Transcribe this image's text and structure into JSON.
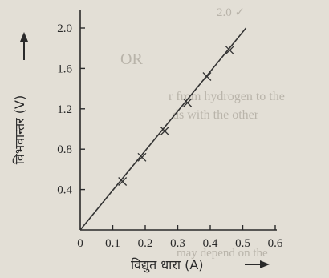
{
  "background_fragments": [
    {
      "text": "OR"
    },
    {
      "text": "r from hydrogen to the"
    },
    {
      "text": "ds with the other"
    },
    {
      "text": "may depend on the"
    },
    {
      "text": "2.0 ✓"
    }
  ],
  "chart_data": {
    "type": "line",
    "title": "",
    "xlabel": "विद्युत धारा (A)",
    "ylabel": "विभवान्तर (V)",
    "xlim": [
      0,
      0.6
    ],
    "ylim": [
      0,
      2.2
    ],
    "x_ticks": [
      "0",
      "0.1",
      "0.2",
      "0.3",
      "0.4",
      "0.5",
      "0.6"
    ],
    "x_tick_values": [
      0,
      0.1,
      0.2,
      0.3,
      0.4,
      0.5,
      0.6
    ],
    "y_ticks": [
      "0.4",
      "0.8",
      "1.2",
      "1.6",
      "2.0"
    ],
    "y_tick_values": [
      0.4,
      0.8,
      1.2,
      1.6,
      2.0
    ],
    "grid": false,
    "series": [
      {
        "points": [
          {
            "x": 0.13,
            "y": 0.48
          },
          {
            "x": 0.19,
            "y": 0.72
          },
          {
            "x": 0.26,
            "y": 0.98
          },
          {
            "x": 0.33,
            "y": 1.26
          },
          {
            "x": 0.39,
            "y": 1.52
          },
          {
            "x": 0.46,
            "y": 1.78
          }
        ],
        "line": {
          "x": [
            0,
            0.51
          ],
          "y": [
            0,
            2.0
          ]
        }
      }
    ],
    "colors": {
      "axis": "#2a2a2a",
      "line": "#333333"
    }
  }
}
